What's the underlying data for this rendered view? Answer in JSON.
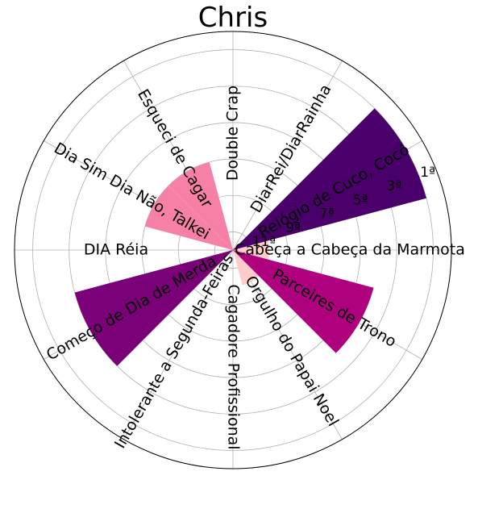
{
  "chart_data": {
    "type": "polar-bar",
    "title": "Chris",
    "direction": "counterclockwise",
    "start_angle_deg": 0,
    "radial_axis": {
      "inverted": true,
      "range": [
        12,
        0
      ],
      "ticks": [
        1,
        3,
        5,
        7,
        9,
        11
      ],
      "tick_labels": [
        "1ª",
        "3ª",
        "5ª",
        "7ª",
        "9ª",
        "11ª"
      ],
      "grid": true
    },
    "categories": [
      "Cabeça a Cabeça da Marmota",
      "Relógio de Cuco, Cocô",
      "DiarRei/DiarRainha",
      "Double Crap",
      "Esqueci de Cagar",
      "Dia Sim Dia Não, Talkei",
      "DIA Réia",
      "Começo de Dia de Merda",
      "Intolerante a Segunda-Feiras",
      "Cagadore Profissional",
      "Orgulho do Papai Noel",
      "Parceires de Trono"
    ],
    "values": [
      10,
      1,
      12,
      12,
      7,
      7,
      12,
      3,
      12,
      12,
      10,
      4
    ],
    "colors": [
      "#ffcccc",
      "#49006a",
      "#ffcccc",
      "#ffcccc",
      "#f781a6",
      "#f781a6",
      "#ffcccc",
      "#7a0177",
      "#ffcccc",
      "#ffcccc",
      "#ffcccc",
      "#ae017e"
    ],
    "legend": "none"
  }
}
